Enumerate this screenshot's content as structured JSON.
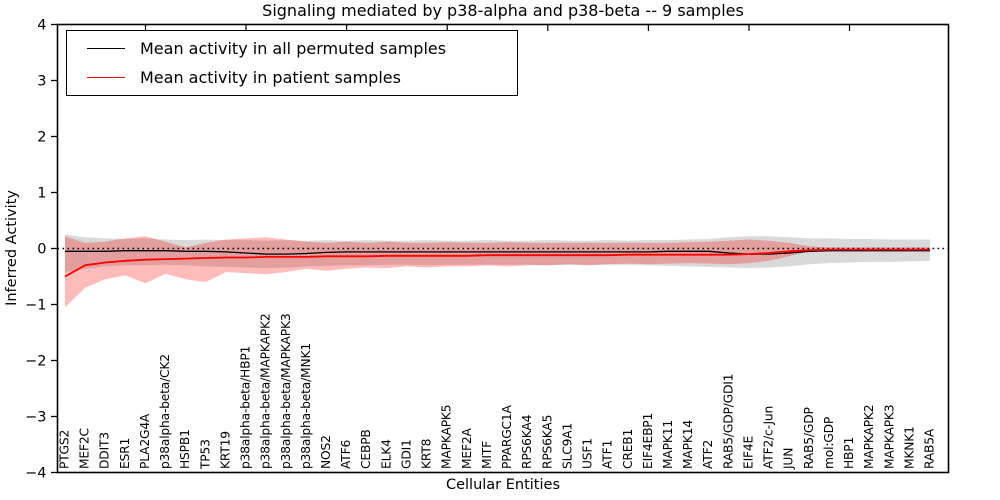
{
  "chart_data": {
    "type": "line",
    "title": "Signaling mediated by p38-alpha and p38-beta -- 9 samples",
    "xlabel": "Cellular Entities",
    "ylabel": "Inferred Activity",
    "ylim": [
      -4,
      4
    ],
    "ytick_values": [
      4,
      3,
      2,
      1,
      0,
      -1,
      -2,
      -3,
      -4
    ],
    "ytick_labels": [
      "4",
      "3",
      "2",
      "1",
      "0",
      "−1",
      "−2",
      "−3",
      "−4"
    ],
    "grid": false,
    "zero_line": {
      "value": 0,
      "style": "dotted",
      "color": "#000000"
    },
    "legend_position": "upper left",
    "categories": [
      "PTGS2",
      "MEF2C",
      "DDIT3",
      "ESR1",
      "PLA2G4A",
      "p38alpha-beta/CK2",
      "HSPB1",
      "TP53",
      "KRT19",
      "p38alpha-beta/HBP1",
      "p38alpha-beta/MAPKAPK2",
      "p38alpha-beta/MAPKAPK3",
      "p38alpha-beta/MNK1",
      "NOS2",
      "ATF6",
      "CEBPB",
      "ELK4",
      "GDI1",
      "KRT8",
      "MAPKAPK5",
      "MEF2A",
      "MITF",
      "PPARGC1A",
      "RPS6KA4",
      "RPS6KA5",
      "SLC9A1",
      "USF1",
      "ATF1",
      "CREB1",
      "EIF4EBP1",
      "MAPK11",
      "MAPK14",
      "ATF2",
      "RAB5/GDP/GDI1",
      "EIF4E",
      "ATF2/c-Jun",
      "JUN",
      "RAB5/GDP",
      "mol:GDP",
      "HBP1",
      "MAPKAPK2",
      "MAPKAPK3",
      "MKNK1",
      "RAB5A"
    ],
    "series": [
      {
        "name": "Mean activity in all permuted samples",
        "color": "#000000",
        "line_width": 1.3,
        "values": [
          -0.05,
          -0.05,
          -0.05,
          -0.04,
          -0.04,
          -0.04,
          -0.05,
          -0.05,
          -0.06,
          -0.08,
          -0.1,
          -0.1,
          -0.09,
          -0.07,
          -0.06,
          -0.06,
          -0.06,
          -0.06,
          -0.06,
          -0.06,
          -0.06,
          -0.06,
          -0.06,
          -0.06,
          -0.06,
          -0.06,
          -0.06,
          -0.06,
          -0.06,
          -0.06,
          -0.05,
          -0.05,
          -0.05,
          -0.08,
          -0.1,
          -0.1,
          -0.08,
          -0.05,
          -0.04,
          -0.04,
          -0.04,
          -0.04,
          -0.04,
          -0.04
        ],
        "band": {
          "color": "#000000",
          "opacity": 0.15,
          "upper": [
            0.25,
            0.2,
            0.18,
            0.17,
            0.18,
            0.16,
            0.15,
            0.16,
            0.15,
            0.15,
            0.14,
            0.15,
            0.14,
            0.15,
            0.14,
            0.15,
            0.14,
            0.14,
            0.15,
            0.14,
            0.14,
            0.15,
            0.14,
            0.14,
            0.15,
            0.14,
            0.14,
            0.15,
            0.14,
            0.15,
            0.15,
            0.16,
            0.17,
            0.2,
            0.22,
            0.22,
            0.2,
            0.18,
            0.18,
            0.17,
            0.17,
            0.16,
            0.16,
            0.16
          ],
          "lower": [
            -0.42,
            -0.36,
            -0.32,
            -0.3,
            -0.3,
            -0.29,
            -0.3,
            -0.32,
            -0.33,
            -0.34,
            -0.35,
            -0.34,
            -0.32,
            -0.31,
            -0.3,
            -0.3,
            -0.29,
            -0.29,
            -0.3,
            -0.29,
            -0.29,
            -0.29,
            -0.29,
            -0.29,
            -0.3,
            -0.29,
            -0.29,
            -0.29,
            -0.29,
            -0.3,
            -0.31,
            -0.32,
            -0.33,
            -0.34,
            -0.35,
            -0.34,
            -0.32,
            -0.28,
            -0.26,
            -0.25,
            -0.24,
            -0.24,
            -0.23,
            -0.22
          ]
        }
      },
      {
        "name": "Mean activity in patient samples",
        "color": "#ff0000",
        "line_width": 1.8,
        "values": [
          -0.5,
          -0.3,
          -0.25,
          -0.22,
          -0.2,
          -0.19,
          -0.18,
          -0.17,
          -0.16,
          -0.16,
          -0.15,
          -0.15,
          -0.15,
          -0.14,
          -0.14,
          -0.14,
          -0.13,
          -0.13,
          -0.13,
          -0.13,
          -0.13,
          -0.12,
          -0.12,
          -0.12,
          -0.12,
          -0.12,
          -0.12,
          -0.12,
          -0.11,
          -0.11,
          -0.11,
          -0.11,
          -0.11,
          -0.11,
          -0.1,
          -0.08,
          -0.05,
          -0.03,
          -0.02,
          -0.02,
          -0.02,
          -0.02,
          -0.02,
          -0.02
        ],
        "band": {
          "color": "#ff0000",
          "opacity": 0.27,
          "upper": [
            0.22,
            0.1,
            0.12,
            0.18,
            0.22,
            0.12,
            0.02,
            0.1,
            0.16,
            0.18,
            0.2,
            0.16,
            0.12,
            0.1,
            0.12,
            0.1,
            0.12,
            0.1,
            0.1,
            0.11,
            0.1,
            0.1,
            0.11,
            0.1,
            0.1,
            0.1,
            0.1,
            0.1,
            0.1,
            0.1,
            0.1,
            0.11,
            0.12,
            0.14,
            0.16,
            0.14,
            0.1,
            0.04,
            0.02,
            0.02,
            0.02,
            0.02,
            0.02,
            0.02
          ],
          "lower": [
            -1.05,
            -0.7,
            -0.55,
            -0.48,
            -0.62,
            -0.45,
            -0.55,
            -0.6,
            -0.42,
            -0.44,
            -0.46,
            -0.42,
            -0.36,
            -0.4,
            -0.36,
            -0.34,
            -0.35,
            -0.32,
            -0.34,
            -0.32,
            -0.32,
            -0.3,
            -0.32,
            -0.3,
            -0.3,
            -0.28,
            -0.3,
            -0.28,
            -0.27,
            -0.28,
            -0.27,
            -0.26,
            -0.27,
            -0.28,
            -0.26,
            -0.22,
            -0.14,
            -0.05,
            -0.04,
            -0.04,
            -0.04,
            -0.04,
            -0.04,
            -0.04
          ]
        }
      }
    ]
  }
}
